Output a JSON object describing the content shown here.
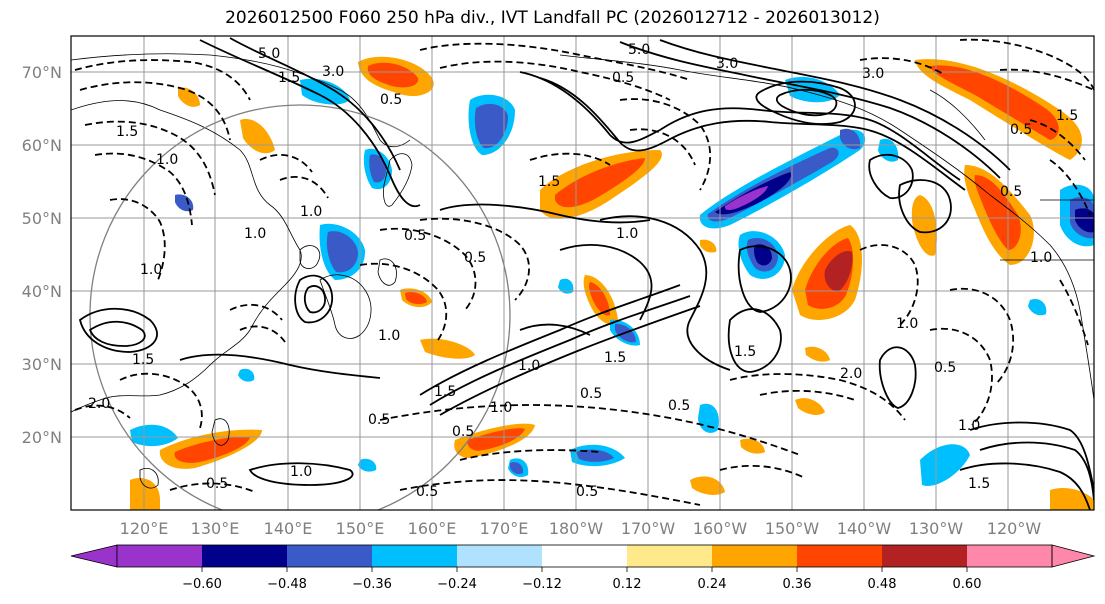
{
  "title": "2026012500 F060 250 hPa div., IVT Landfall PC (2026012712 - 2026013012)",
  "map": {
    "lon_labels": [
      "120°E",
      "130°E",
      "140°E",
      "150°E",
      "160°E",
      "170°E",
      "180°W",
      "170°W",
      "160°W",
      "150°W",
      "140°W",
      "130°W",
      "120°W"
    ],
    "lat_labels": [
      "70°N",
      "60°N",
      "50°N",
      "40°N",
      "30°N",
      "20°N"
    ],
    "contour_labels": [
      "5.0",
      "3.0",
      "1.5",
      "0.5",
      "3.0",
      "5.0",
      "3.0",
      "1.5",
      "1.0",
      "0.5",
      "1.0",
      "0.5",
      "1.5",
      "1.0",
      "0.5",
      "1.5",
      "2.0",
      "1.0",
      "0.5",
      "0.5",
      "1.5",
      "1.0",
      "0.5",
      "1.0",
      "0.5",
      "0.5",
      "2.0",
      "1.0",
      "1.5",
      "1.0",
      "1.5",
      "1.0",
      "0.5",
      "0.5",
      "1.0",
      "0.5",
      "1.0",
      "1.5",
      "0.5",
      "1.5",
      "1.0",
      "0.5"
    ]
  },
  "colorbar": {
    "tick_labels": [
      "−0.60",
      "−0.48",
      "−0.36",
      "−0.24",
      "−0.12",
      "0.12",
      "0.24",
      "0.36",
      "0.48",
      "0.60"
    ],
    "colors": [
      "#9933cc",
      "#00008b",
      "#3a5bc7",
      "#00bfff",
      "#b0e2ff",
      "#ffffff",
      "#ffe98a",
      "#ffa500",
      "#ff4500",
      "#b22222",
      "#ff88aa"
    ]
  },
  "colors": {
    "grid": "#999999",
    "coast": "#000000",
    "contour": "#000000",
    "circle": "#808080"
  }
}
